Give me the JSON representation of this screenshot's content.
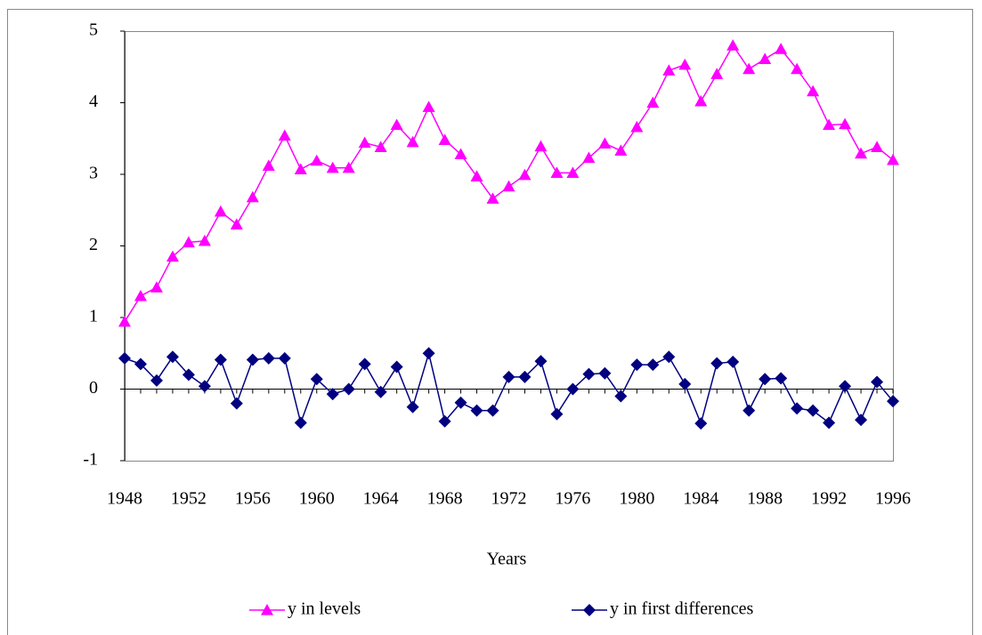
{
  "chart_data": {
    "type": "line",
    "x": [
      1948,
      1949,
      1950,
      1951,
      1952,
      1953,
      1954,
      1955,
      1956,
      1957,
      1958,
      1959,
      1960,
      1961,
      1962,
      1963,
      1964,
      1965,
      1966,
      1967,
      1968,
      1969,
      1970,
      1971,
      1972,
      1973,
      1974,
      1975,
      1976,
      1977,
      1978,
      1979,
      1980,
      1981,
      1982,
      1983,
      1984,
      1985,
      1986,
      1987,
      1988,
      1989,
      1990,
      1991,
      1992,
      1993,
      1994,
      1995,
      1996
    ],
    "series": [
      {
        "name": "y in levels",
        "color": "#ff00ff",
        "marker": "triangle",
        "values": [
          0.94,
          1.3,
          1.42,
          1.85,
          2.05,
          2.07,
          2.48,
          2.3,
          2.68,
          3.12,
          3.54,
          3.07,
          3.19,
          3.09,
          3.09,
          3.44,
          3.38,
          3.69,
          3.45,
          3.94,
          3.48,
          3.28,
          2.97,
          2.66,
          2.83,
          2.99,
          3.39,
          3.02,
          3.02,
          3.23,
          3.43,
          3.33,
          3.66,
          4.0,
          4.45,
          4.53,
          4.02,
          4.4,
          4.8,
          4.47,
          4.61,
          4.75,
          4.47,
          4.16,
          3.69,
          3.7,
          3.29,
          3.38,
          3.2
        ]
      },
      {
        "name": "y in first differences",
        "color": "#000080",
        "marker": "diamond",
        "values": [
          0.43,
          0.35,
          0.12,
          0.45,
          0.2,
          0.04,
          0.41,
          -0.2,
          0.41,
          0.43,
          0.43,
          -0.47,
          0.14,
          -0.07,
          0.0,
          0.35,
          -0.04,
          0.31,
          -0.25,
          0.5,
          -0.45,
          -0.19,
          -0.3,
          -0.3,
          0.17,
          0.17,
          0.39,
          -0.35,
          0.0,
          0.21,
          0.22,
          -0.1,
          0.34,
          0.34,
          0.45,
          0.07,
          -0.48,
          0.36,
          0.38,
          -0.3,
          0.14,
          0.15,
          -0.27,
          -0.3,
          -0.47,
          0.04,
          -0.43,
          0.1,
          -0.17
        ]
      }
    ],
    "xlabel": "Years",
    "xlim": [
      1948,
      1996
    ],
    "xticks": [
      1948,
      1952,
      1956,
      1960,
      1964,
      1968,
      1972,
      1976,
      1980,
      1984,
      1988,
      1992,
      1996
    ],
    "ylim": [
      -1,
      5
    ],
    "yticks": [
      -1,
      0,
      1,
      2,
      3,
      4,
      5
    ],
    "legend": "bottom",
    "grid": false
  }
}
